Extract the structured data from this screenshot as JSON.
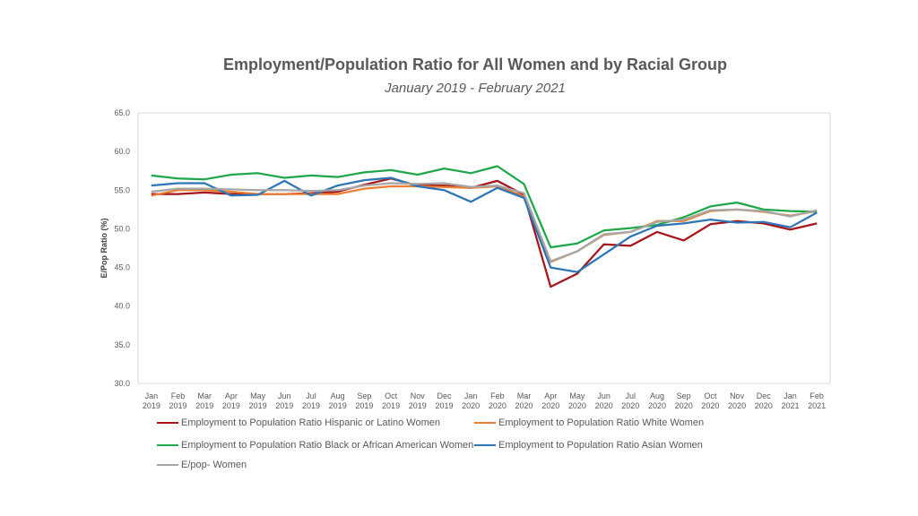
{
  "chart_data": {
    "type": "line",
    "title": "Employment/Population Ratio for All Women and by Racial Group",
    "subtitle": "January 2019 - February 2021",
    "ylabel": "E/Pop Ratio (%)",
    "xlabel": "",
    "ylim": [
      30,
      65
    ],
    "yticks": [
      "30.0",
      "35.0",
      "40.0",
      "45.0",
      "50.0",
      "55.0",
      "60.0",
      "65.0"
    ],
    "grid": false,
    "legend_position": "bottom",
    "categories": [
      [
        "Jan",
        "2019"
      ],
      [
        "Feb",
        "2019"
      ],
      [
        "Mar",
        "2019"
      ],
      [
        "Apr",
        "2019"
      ],
      [
        "May",
        "2019"
      ],
      [
        "Jun",
        "2019"
      ],
      [
        "Jul",
        "2019"
      ],
      [
        "Aug",
        "2019"
      ],
      [
        "Sep",
        "2019"
      ],
      [
        "Oct",
        "2019"
      ],
      [
        "Nov",
        "2019"
      ],
      [
        "Dec",
        "2019"
      ],
      [
        "Jan",
        "2020"
      ],
      [
        "Feb",
        "2020"
      ],
      [
        "Mar",
        "2020"
      ],
      [
        "Apr",
        "2020"
      ],
      [
        "May",
        "2020"
      ],
      [
        "Jun",
        "2020"
      ],
      [
        "Jul",
        "2020"
      ],
      [
        "Aug",
        "2020"
      ],
      [
        "Sep",
        "2020"
      ],
      [
        "Oct",
        "2020"
      ],
      [
        "Nov",
        "2020"
      ],
      [
        "Dec",
        "2020"
      ],
      [
        "Jan",
        "2021"
      ],
      [
        "Feb",
        "2021"
      ]
    ],
    "series": [
      {
        "name": "Employment to Population Ratio Hispanic or Latino Women",
        "color": "#A5151A",
        "values": [
          54.5,
          54.5,
          54.7,
          54.5,
          54.5,
          54.5,
          54.6,
          54.8,
          55.7,
          56.5,
          55.6,
          55.6,
          55.3,
          56.2,
          54.4,
          42.5,
          44.2,
          48.0,
          47.8,
          49.6,
          48.5,
          50.6,
          51.0,
          50.7,
          49.9,
          50.7
        ]
      },
      {
        "name": "Employment to Population Ratio White Women",
        "color": "#ED7D31",
        "values": [
          54.3,
          55.0,
          55.0,
          54.8,
          54.5,
          54.5,
          54.5,
          54.5,
          55.2,
          55.5,
          55.5,
          55.4,
          55.3,
          55.5,
          54.2,
          45.7,
          47.1,
          49.2,
          49.6,
          51.0,
          51.0,
          52.3,
          52.5,
          52.2,
          51.7,
          52.3
        ]
      },
      {
        "name": "Employment to Population Ratio Black or African American Women",
        "color": "#1FA74A",
        "values": [
          56.9,
          56.5,
          56.4,
          57.0,
          57.2,
          56.6,
          56.9,
          56.7,
          57.3,
          57.6,
          57.0,
          57.8,
          57.2,
          58.1,
          55.8,
          47.6,
          48.1,
          49.8,
          50.1,
          50.5,
          51.5,
          52.9,
          53.4,
          52.5,
          52.3,
          52.2
        ]
      },
      {
        "name": "Employment to Population Ratio Asian Women",
        "color": "#2E75B6",
        "values": [
          55.6,
          55.9,
          55.9,
          54.3,
          54.4,
          56.2,
          54.3,
          55.6,
          56.3,
          56.6,
          55.5,
          55.0,
          53.5,
          55.3,
          54.0,
          45.0,
          44.4,
          46.7,
          49.0,
          50.4,
          50.7,
          51.2,
          50.8,
          50.9,
          50.2,
          52.1
        ]
      },
      {
        "name": "E/pop- Women",
        "color": "#A6A6A6",
        "values": [
          54.8,
          55.2,
          55.2,
          55.1,
          55.0,
          55.0,
          54.9,
          55.0,
          55.6,
          55.9,
          55.8,
          55.9,
          55.4,
          55.6,
          54.6,
          45.8,
          47.1,
          49.3,
          49.6,
          50.9,
          51.2,
          52.4,
          52.5,
          52.3,
          51.6,
          52.4
        ]
      }
    ]
  }
}
